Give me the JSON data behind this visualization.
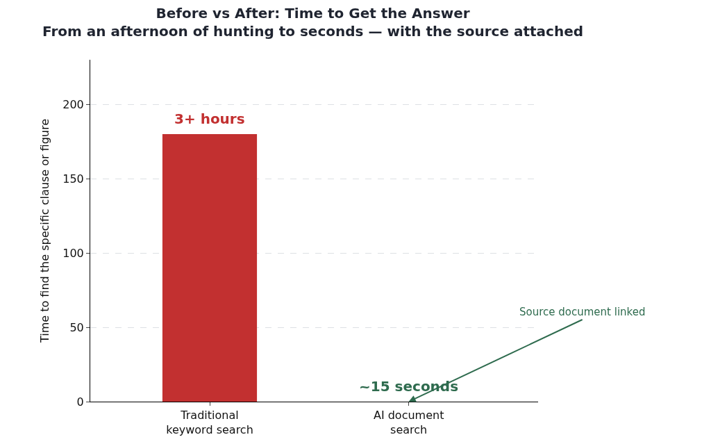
{
  "chart_data": {
    "type": "bar",
    "title": "Before vs After: Time to Get the Answer",
    "subtitle": "From an afternoon of hunting to seconds — with the source attached",
    "ylabel": "Time to find the specific clause or figure",
    "categories": [
      "Traditional\nkeyword search",
      "AI document\nsearch"
    ],
    "values": [
      180,
      0
    ],
    "colors": [
      "#c23030",
      "#2e6b4e"
    ],
    "ylim": [
      0,
      230
    ],
    "yticks": [
      0,
      50,
      100,
      150,
      200
    ],
    "grid": "y",
    "annotations": [
      {
        "text": "3+ hours",
        "x": "Traditional\nkeyword search",
        "y": 180
      },
      {
        "text": "~15 seconds",
        "x": "AI document\nsearch",
        "y": 0
      },
      "Source document linked"
    ]
  }
}
